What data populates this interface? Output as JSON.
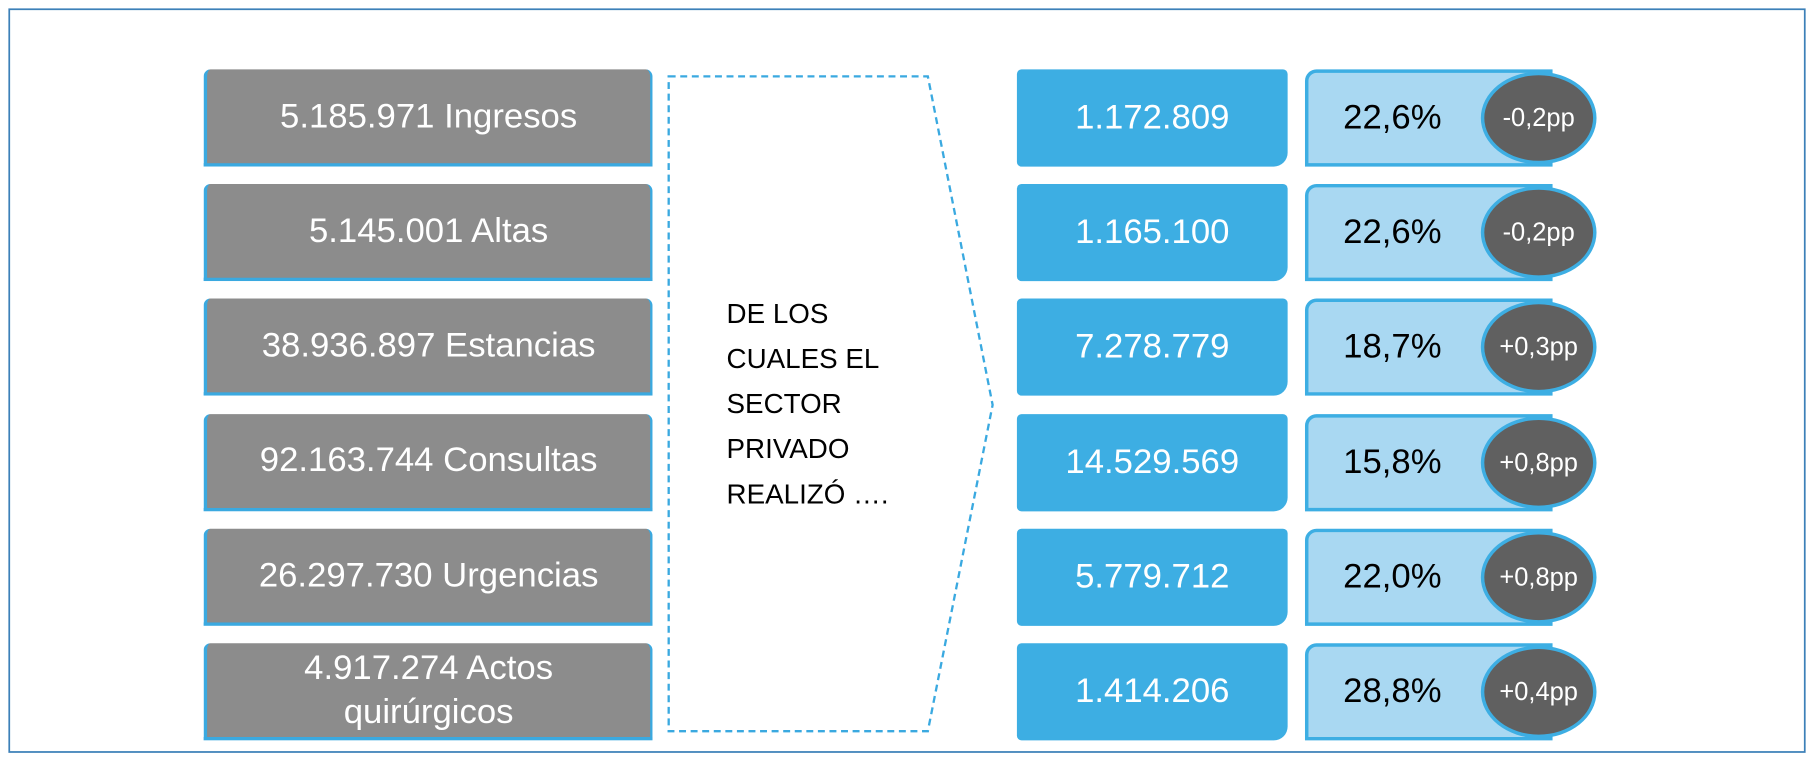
{
  "rows": [
    {
      "total": "5.185.971 Ingresos",
      "private": "1.172.809",
      "share": "22,6%",
      "change": "-0,2pp"
    },
    {
      "total": "5.145.001 Altas",
      "private": "1.165.100",
      "share": "22,6%",
      "change": "-0,2pp"
    },
    {
      "total": "38.936.897 Estancias",
      "private": "7.278.779",
      "share": "18,7%",
      "change": "+0,3pp"
    },
    {
      "total": "92.163.744 Consultas",
      "private": "14.529.569",
      "share": "15,8%",
      "change": "+0,8pp"
    },
    {
      "total": "26.297.730 Urgencias",
      "private": "5.779.712",
      "share": "22,0%",
      "change": "+0,8pp"
    },
    {
      "total": "4.917.274 Actos quirúrgicos",
      "private": "1.414.206",
      "share": "28,8%",
      "change": "+0,4pp"
    }
  ],
  "arrow": {
    "lines": [
      "DE LOS",
      "CUALES EL",
      "SECTOR",
      "PRIVADO",
      "REALIZÓ …."
    ]
  }
}
